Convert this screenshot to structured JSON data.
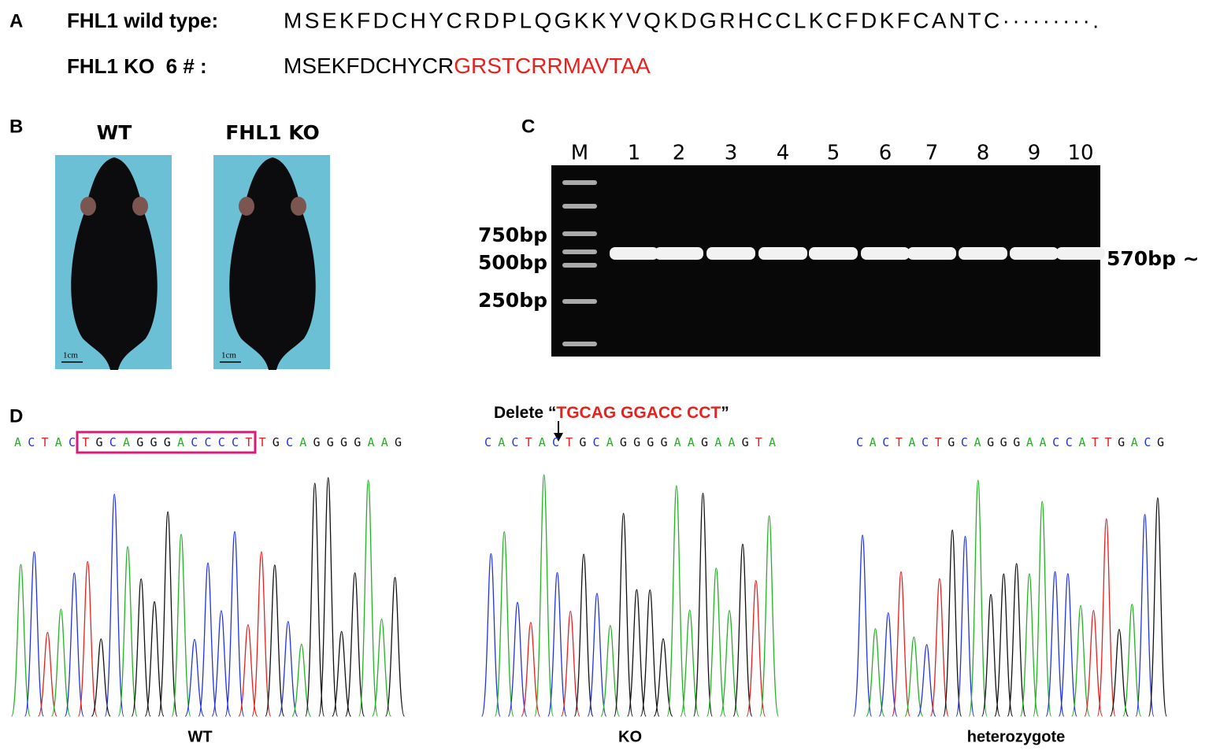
{
  "panel_a": {
    "label": "A",
    "wild_type": {
      "name": "FHL1 wild type:",
      "sequence": "MSEKFDCHYCRDPLQGKKYVQKDGRHCCLKCFDKFCANTC·········."
    },
    "ko": {
      "name": "FHL1 KO  6 # :",
      "sequence_kept": "MSEKFDCHYCR",
      "sequence_changed": "GRSTCRRMAVTAA"
    }
  },
  "panel_b": {
    "label": "B",
    "photos": [
      {
        "label": "WT",
        "scale": "1cm"
      },
      {
        "label": "FHL1 KO",
        "scale": "1cm"
      }
    ]
  },
  "panel_c": {
    "label": "C",
    "lanes": [
      "M",
      "1",
      "2",
      "3",
      "4",
      "5",
      "6",
      "7",
      "8",
      "9",
      "10"
    ],
    "markers": [
      "750bp",
      "500bp",
      "250bp"
    ],
    "band_label": "570bp ~"
  },
  "panel_d": {
    "label": "D",
    "delete": {
      "prefix": "Delete “",
      "bases": "TGCAG GGACC CCT",
      "suffix": "”"
    },
    "traces": [
      {
        "sequence": "ACTACTGCAGGGACCCCTTGCAGGGGAAG",
        "caption": "WT"
      },
      {
        "sequence": "CACTACTGCAGGGGAAGAAGTA",
        "caption": "KO"
      },
      {
        "sequence": "CACTACTGCAGGGAACCATTGACG",
        "caption": "heterozygote"
      }
    ]
  }
}
